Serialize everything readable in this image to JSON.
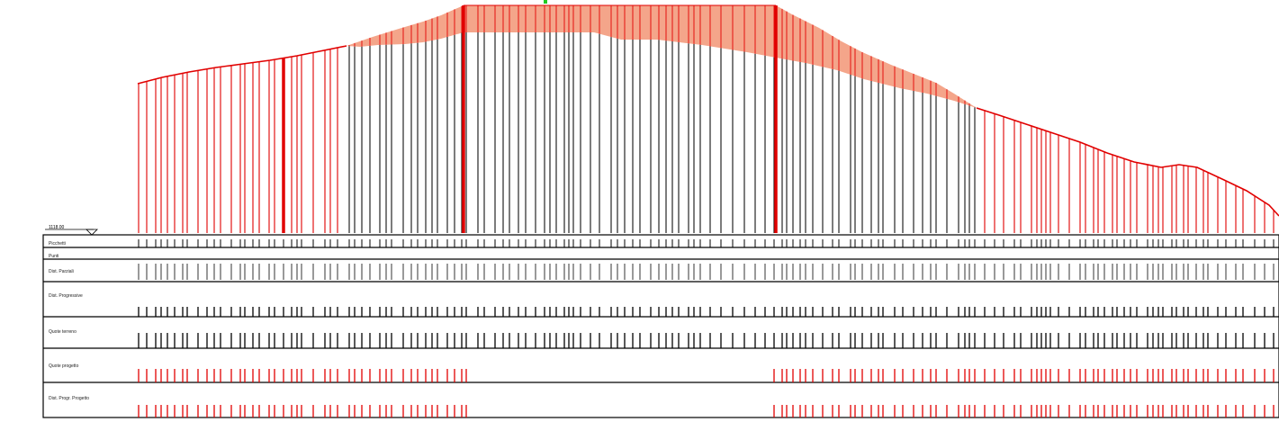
{
  "profile": {
    "datum_label": "1118.00",
    "table_rows": [
      "Picchetti",
      "Punti",
      "Dist. Parziali",
      "Dist. Progressive",
      "Quote terreno",
      "Quote progetto",
      "Dist. Progr. Progetto"
    ],
    "colors": {
      "fill": "#F4A58A",
      "cut_line": "#E10000",
      "station_line": "#111111",
      "marker": "#22CC22",
      "table_border": "#000000"
    }
  }
}
